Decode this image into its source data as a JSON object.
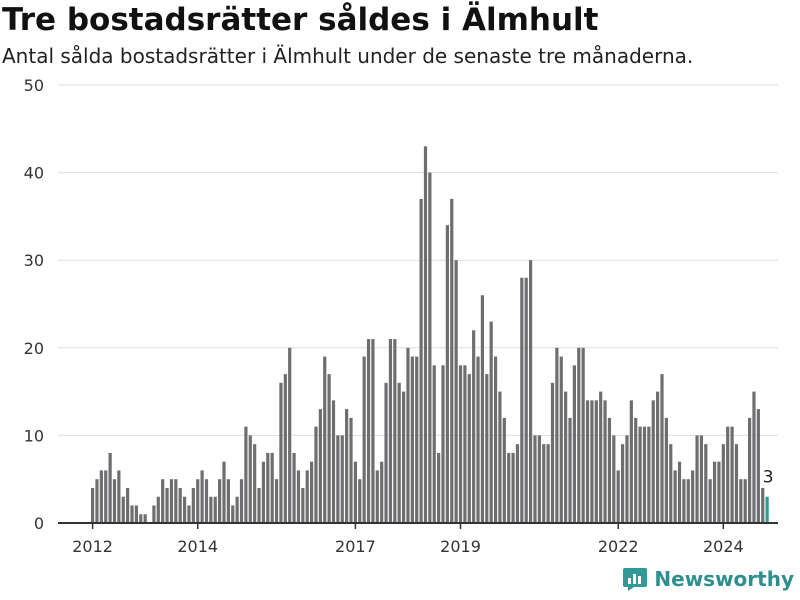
{
  "header": {
    "title": "Tre bostadsrätter såldes i Älmhult",
    "subtitle": "Antal sålda bostadsrätter i Älmhult under de senaste tre månaderna."
  },
  "brand": {
    "name": "Newsworthy",
    "color": "#2f9a97"
  },
  "colors": {
    "bar": "#6e6d70",
    "highlight": "#2a9d8f",
    "grid": "#dddddd",
    "axis": "#333333"
  },
  "chart_data": {
    "type": "bar",
    "title": "Tre bostadsrätter såldes i Älmhult",
    "subtitle": "Antal sålda bostadsrätter i Älmhult under de senaste tre månaderna.",
    "xlabel": "",
    "ylabel": "",
    "ylim": [
      0,
      50
    ],
    "yticks": [
      0,
      10,
      20,
      30,
      40,
      50
    ],
    "xticks": [
      "2012",
      "2014",
      "2017",
      "2019",
      "2022",
      "2024"
    ],
    "grid": true,
    "legend": "none",
    "start": "2012-01",
    "interval": "month",
    "values": [
      4,
      5,
      6,
      6,
      8,
      5,
      6,
      3,
      4,
      2,
      2,
      1,
      1,
      0,
      2,
      3,
      5,
      4,
      5,
      5,
      4,
      3,
      2,
      4,
      5,
      6,
      5,
      3,
      3,
      5,
      7,
      5,
      2,
      3,
      5,
      11,
      10,
      9,
      4,
      7,
      8,
      8,
      5,
      16,
      17,
      20,
      8,
      6,
      4,
      6,
      7,
      11,
      13,
      19,
      17,
      14,
      10,
      10,
      13,
      12,
      7,
      5,
      19,
      21,
      21,
      6,
      7,
      16,
      21,
      21,
      16,
      15,
      20,
      19,
      19,
      37,
      43,
      40,
      18,
      8,
      18,
      34,
      37,
      30,
      18,
      18,
      17,
      22,
      19,
      26,
      17,
      23,
      19,
      15,
      12,
      8,
      8,
      9,
      28,
      28,
      30,
      10,
      10,
      9,
      9,
      16,
      20,
      19,
      15,
      12,
      18,
      20,
      20,
      14,
      14,
      14,
      15,
      14,
      12,
      10,
      6,
      9,
      10,
      14,
      12,
      11,
      11,
      11,
      14,
      15,
      17,
      12,
      9,
      6,
      7,
      5,
      5,
      6,
      10,
      10,
      9,
      5,
      7,
      7,
      9,
      11,
      11,
      9,
      5,
      5,
      12,
      15,
      13,
      4,
      3
    ],
    "highlight_last": true,
    "last_value_label": "3"
  }
}
